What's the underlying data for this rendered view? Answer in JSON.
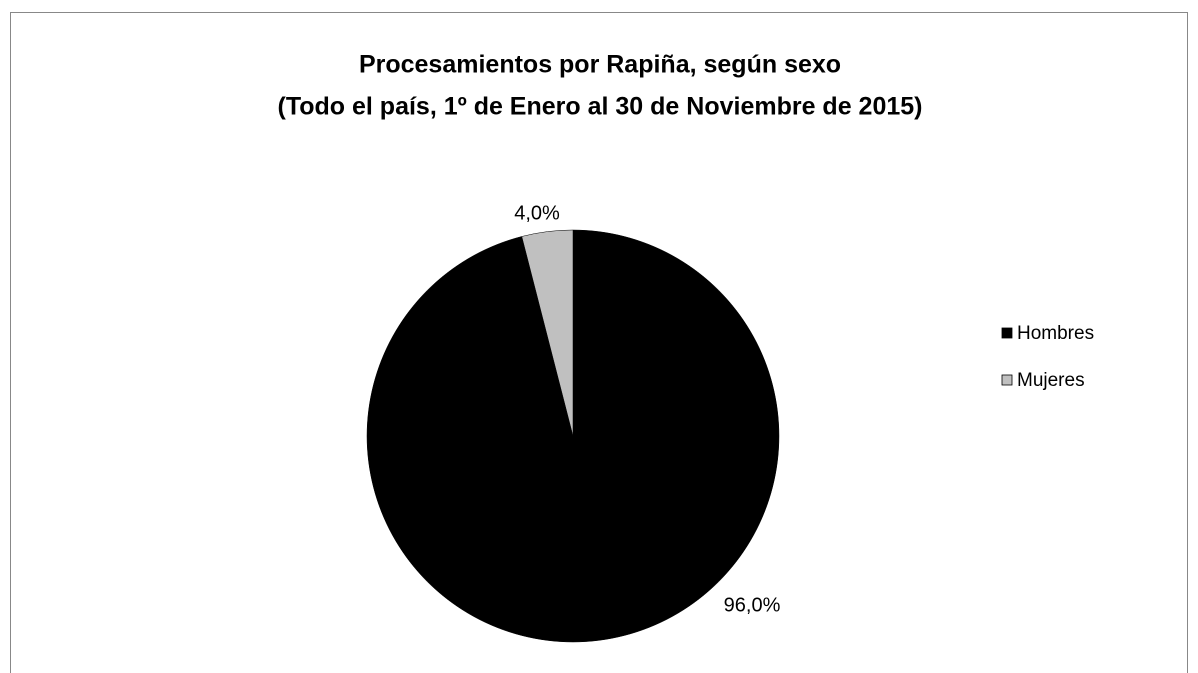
{
  "chart_data": {
    "type": "pie",
    "title": "Procesamientos por Rapiña, según sexo",
    "subtitle": "(Todo el país, 1º de Enero al 30 de Noviembre de 2015)",
    "categories": [
      "Hombres",
      "Mujeres"
    ],
    "values": [
      96,
      4
    ],
    "value_labels": [
      "96,0%",
      "4,0%"
    ],
    "colors": [
      "#000000",
      "#c0c0c0"
    ],
    "legend": "right"
  }
}
